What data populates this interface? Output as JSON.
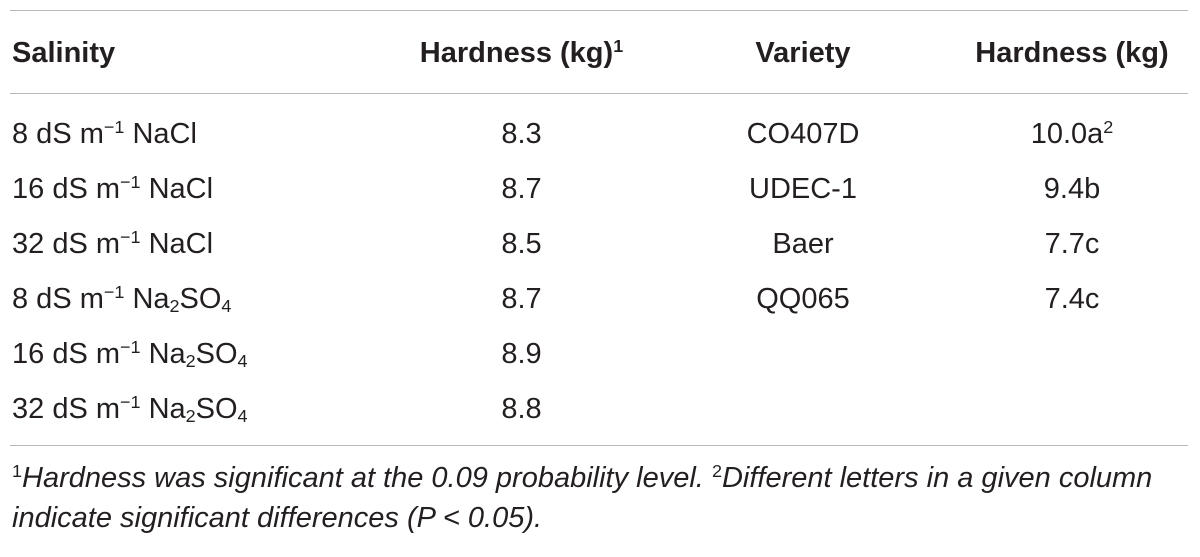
{
  "headers": {
    "salinity": "Salinity",
    "hardness": "Hardness (kg)",
    "hardness_sup": "1",
    "variety": "Variety",
    "variety_hardness": "Hardness (kg)"
  },
  "rows": [
    {
      "sal_num": "8 dS m",
      "sal_exp": "−1",
      "sal_salt": "NaCl",
      "sal_sub": "",
      "sal_tail": "",
      "hardness": "8.3",
      "variety": "CO407D",
      "v_hard": "10.0a",
      "v_sup": "2"
    },
    {
      "sal_num": "16 dS m",
      "sal_exp": "−1",
      "sal_salt": "NaCl",
      "sal_sub": "",
      "sal_tail": "",
      "hardness": "8.7",
      "variety": "UDEC-1",
      "v_hard": "9.4b",
      "v_sup": ""
    },
    {
      "sal_num": "32 dS m",
      "sal_exp": "−1",
      "sal_salt": "NaCl",
      "sal_sub": "",
      "sal_tail": "",
      "hardness": "8.5",
      "variety": "Baer",
      "v_hard": "7.7c",
      "v_sup": ""
    },
    {
      "sal_num": "8 dS m",
      "sal_exp": "−1",
      "sal_salt": "Na",
      "sal_sub": "2",
      "sal_tail": "SO",
      "sal_sub2": "4",
      "hardness": "8.7",
      "variety": "QQ065",
      "v_hard": "7.4c",
      "v_sup": ""
    },
    {
      "sal_num": "16 dS m",
      "sal_exp": "−1",
      "sal_salt": "Na",
      "sal_sub": "2",
      "sal_tail": "SO",
      "sal_sub2": "4",
      "hardness": "8.9",
      "variety": "",
      "v_hard": "",
      "v_sup": ""
    },
    {
      "sal_num": "32 dS m",
      "sal_exp": "−1",
      "sal_salt": "Na",
      "sal_sub": "2",
      "sal_tail": "SO",
      "sal_sub2": "4",
      "hardness": "8.8",
      "variety": "",
      "v_hard": "",
      "v_sup": ""
    }
  ],
  "footnote": {
    "sup1": "1",
    "text1": "Hardness was significant at the 0.09 probability level. ",
    "sup2": "2",
    "text2": "Different letters in a given column indicate significant differences (P < 0.05)."
  }
}
